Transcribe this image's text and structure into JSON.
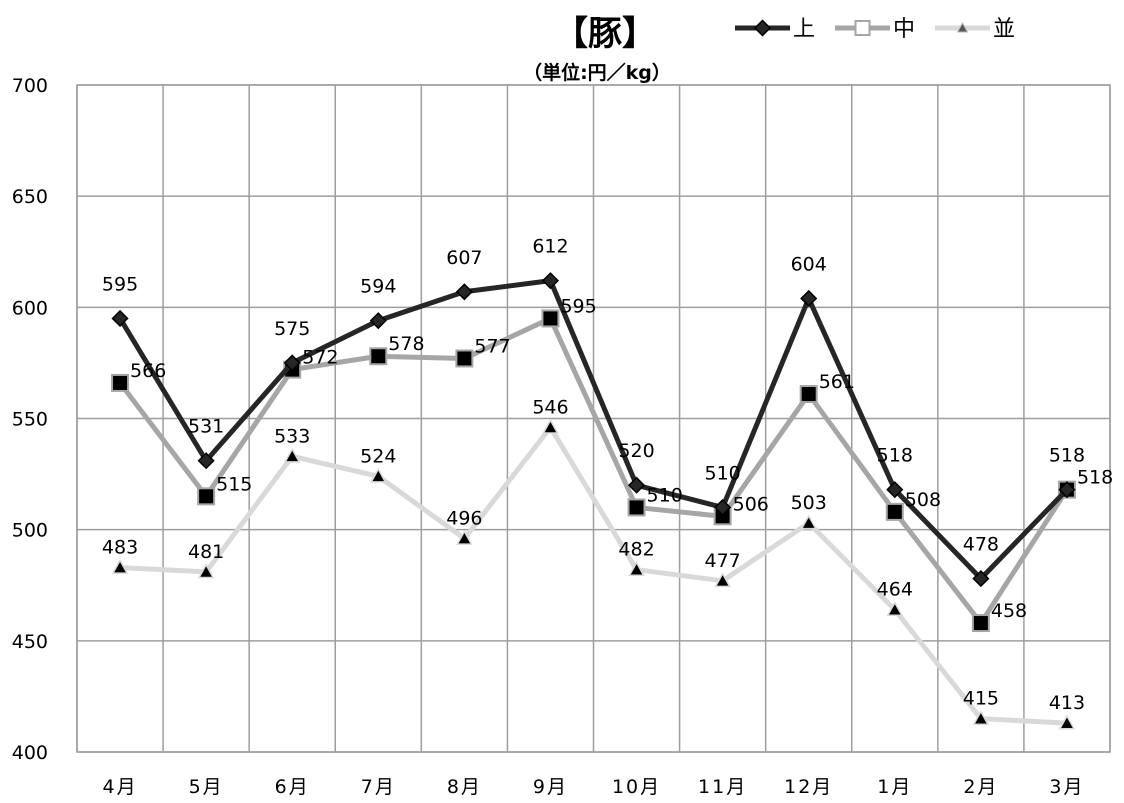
{
  "chart_data": {
    "type": "line",
    "title": "【豚】",
    "subtitle": "（単位:円／kg）",
    "categories": [
      "4月",
      "5月",
      "6月",
      "7月",
      "8月",
      "9月",
      "10月",
      "11月",
      "12月",
      "1月",
      "2月",
      "3月"
    ],
    "ylim": [
      400,
      700
    ],
    "yticks": [
      400,
      450,
      500,
      550,
      600,
      650,
      700
    ],
    "grid": true,
    "legend_position": "top-right",
    "series": [
      {
        "name": "上",
        "marker": "diamond",
        "color": "#262626",
        "values": [
          595,
          531,
          575,
          594,
          607,
          612,
          520,
          510,
          604,
          518,
          478,
          518
        ]
      },
      {
        "name": "中",
        "marker": "square",
        "color": "#a6a6a6",
        "values": [
          566,
          515,
          572,
          578,
          577,
          595,
          510,
          506,
          561,
          508,
          458,
          518
        ]
      },
      {
        "name": "並",
        "marker": "triangle",
        "color": "#d9d9d9",
        "values": [
          483,
          481,
          533,
          524,
          496,
          546,
          482,
          477,
          503,
          464,
          415,
          413
        ]
      }
    ]
  }
}
